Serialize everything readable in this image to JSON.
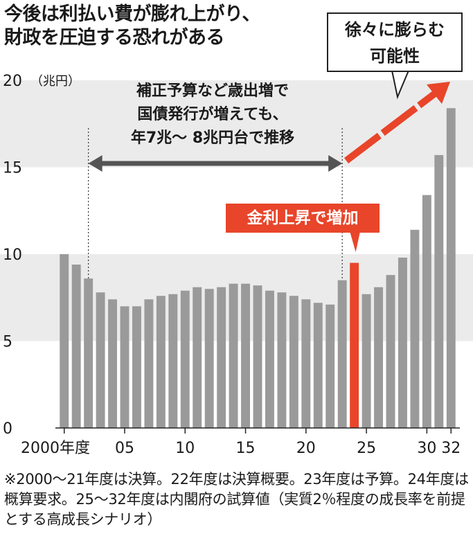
{
  "header": {
    "title_line1": "今後は利払い費が膨れ上がり、",
    "title_line2": "財政を圧迫する恐れがある"
  },
  "callout": {
    "line1": "徐々に膨らむ",
    "line2": "可能性"
  },
  "annotations": {
    "stable_line1": "補正予算など歳出増で",
    "stable_line2": "国債発行が増えても、",
    "stable_line3": "年7兆～ 8兆円台で推移",
    "rate_rise": "金利上昇で増加"
  },
  "footnote": "※2000～21年度は決算。22年度は決算概要。23年度は予算。24年度は概算要求。25～32年度は内閣府の試算値（実質2％程度の成長率を前提とする高成長シナリオ）",
  "colors": {
    "bar": "#9a9a9a",
    "highlight": "#e8452a",
    "band": "#ebebeb"
  },
  "chart_data": {
    "type": "bar",
    "title": "",
    "xlabel": "",
    "ylabel": "（兆円）",
    "ylim": [
      0,
      20
    ],
    "yticks": [
      0,
      5,
      10,
      15,
      20
    ],
    "grid": "alternating bands",
    "x_tick_labels": [
      {
        "year": 2000,
        "label": "2000年度"
      },
      {
        "year": 2005,
        "label": "05"
      },
      {
        "year": 2010,
        "label": "10"
      },
      {
        "year": 2015,
        "label": "15"
      },
      {
        "year": 2020,
        "label": "20"
      },
      {
        "year": 2025,
        "label": "25"
      },
      {
        "year": 2030,
        "label": "30"
      },
      {
        "year": 2032,
        "label": "32"
      }
    ],
    "categories": [
      2000,
      2001,
      2002,
      2003,
      2004,
      2005,
      2006,
      2007,
      2008,
      2009,
      2010,
      2011,
      2012,
      2013,
      2014,
      2015,
      2016,
      2017,
      2018,
      2019,
      2020,
      2021,
      2022,
      2023,
      2024,
      2025,
      2026,
      2027,
      2028,
      2029,
      2030,
      2031,
      2032
    ],
    "series": [
      {
        "values": [
          10.0,
          9.4,
          8.6,
          7.8,
          7.4,
          7.0,
          7.0,
          7.4,
          7.6,
          7.7,
          7.9,
          8.1,
          8.0,
          8.1,
          8.3,
          8.3,
          8.2,
          7.9,
          7.8,
          7.6,
          7.4,
          7.2,
          7.1,
          8.5,
          9.5,
          7.7,
          8.1,
          8.8,
          9.8,
          11.4,
          13.4,
          15.7,
          18.4
        ]
      }
    ],
    "highlight_category": 2024
  }
}
